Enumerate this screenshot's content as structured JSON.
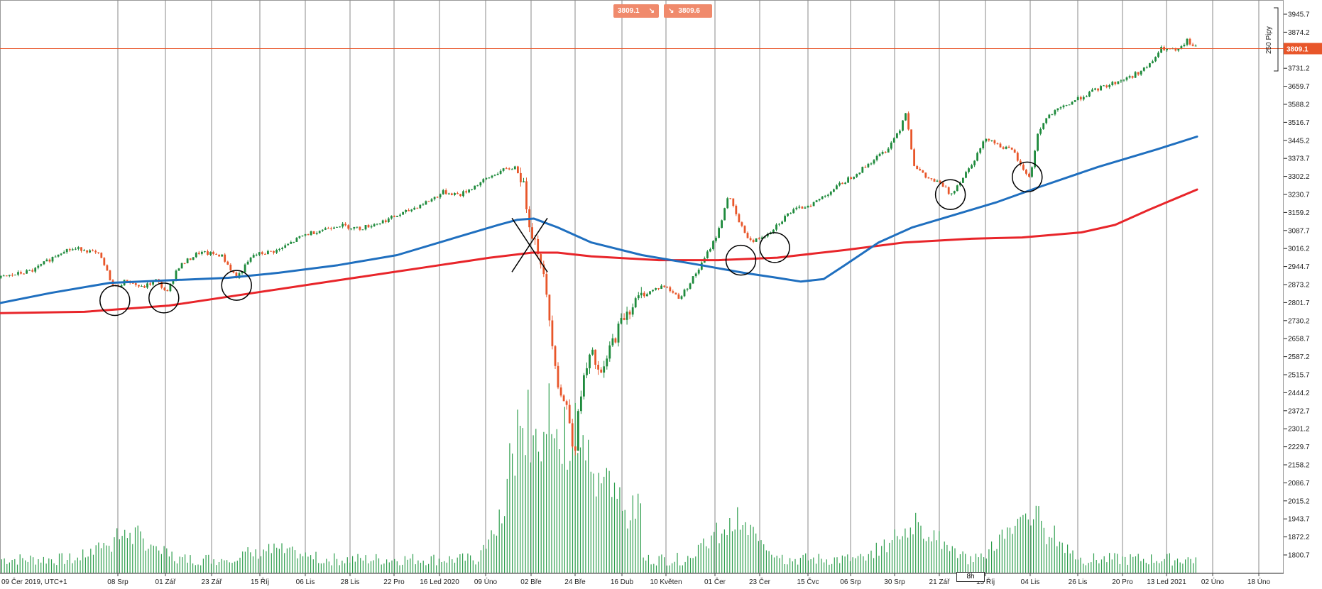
{
  "badges": {
    "sell_price": "3809.1",
    "buy_price": "3809.6",
    "sell_arrow": "↘",
    "buy_arrow": "↘"
  },
  "colors": {
    "up": "#1e8a3c",
    "down": "#e8562a",
    "ma_fast": "#1f6fbf",
    "ma_slow": "#e8252a",
    "current_price_line": "#e8562a",
    "volume": "#2e9e4d"
  },
  "chart_data": {
    "type": "candlestick",
    "title": "",
    "timezone_label": "09 Čer 2019, UTC+1",
    "timeframe": "8h",
    "bracket_label": "250 Pipy",
    "current_price": "3809.1",
    "ylim": [
      1771,
      3982
    ],
    "y_ticks": [
      "3945.7",
      "3874.2",
      "3731.2",
      "3659.7",
      "3588.2",
      "3516.7",
      "3445.2",
      "3373.7",
      "3302.2",
      "3230.7",
      "3159.2",
      "3087.7",
      "3016.2",
      "2944.7",
      "2873.2",
      "2801.7",
      "2730.2",
      "2658.7",
      "2587.2",
      "2515.7",
      "2444.2",
      "2372.7",
      "2301.2",
      "2229.7",
      "2158.2",
      "2086.7",
      "2015.2",
      "1943.7",
      "1872.2",
      "1800.7"
    ],
    "x_labels": [
      "09 Čer 2019, UTC+1",
      "08 Srp",
      "01 Zář",
      "23 Zář",
      "15 Říj",
      "06 Lis",
      "28 Lis",
      "22 Pro",
      "16 Led 2020",
      "09 Úno",
      "02 Bře",
      "24 Bře",
      "16 Dub",
      "10 Květen",
      "01 Čer",
      "23 Čer",
      "15 Čvc",
      "06 Srp",
      "30 Srp",
      "21 Zář",
      "13 Říj",
      "04 Lis",
      "26 Lis",
      "20 Pro",
      "13 Led 2021",
      "02 Úno",
      "18 Úno"
    ],
    "price_path": [
      [
        0,
        2900
      ],
      [
        40,
        2930
      ],
      [
        75,
        3010
      ],
      [
        98,
        3015
      ],
      [
        118,
        2990
      ],
      [
        135,
        2860
      ],
      [
        150,
        2890
      ],
      [
        168,
        2860
      ],
      [
        185,
        2890
      ],
      [
        198,
        2840
      ],
      [
        210,
        2940
      ],
      [
        235,
        3000
      ],
      [
        262,
        2990
      ],
      [
        280,
        2900
      ],
      [
        300,
        2990
      ],
      [
        330,
        3010
      ],
      [
        360,
        3070
      ],
      [
        400,
        3110
      ],
      [
        425,
        3095
      ],
      [
        450,
        3120
      ],
      [
        480,
        3160
      ],
      [
        510,
        3210
      ],
      [
        525,
        3240
      ],
      [
        545,
        3230
      ],
      [
        565,
        3270
      ],
      [
        590,
        3320
      ],
      [
        610,
        3340
      ],
      [
        618,
        3290
      ],
      [
        628,
        3100
      ],
      [
        640,
        2980
      ],
      [
        652,
        2700
      ],
      [
        662,
        2450
      ],
      [
        672,
        2380
      ],
      [
        680,
        2205
      ],
      [
        688,
        2460
      ],
      [
        700,
        2600
      ],
      [
        712,
        2500
      ],
      [
        722,
        2620
      ],
      [
        740,
        2760
      ],
      [
        760,
        2830
      ],
      [
        785,
        2870
      ],
      [
        805,
        2820
      ],
      [
        830,
        2950
      ],
      [
        850,
        3080
      ],
      [
        862,
        3230
      ],
      [
        876,
        3110
      ],
      [
        890,
        3040
      ],
      [
        910,
        3080
      ],
      [
        935,
        3160
      ],
      [
        965,
        3200
      ],
      [
        990,
        3260
      ],
      [
        1020,
        3330
      ],
      [
        1050,
        3410
      ],
      [
        1065,
        3490
      ],
      [
        1072,
        3560
      ],
      [
        1082,
        3350
      ],
      [
        1095,
        3300
      ],
      [
        1115,
        3270
      ],
      [
        1125,
        3230
      ],
      [
        1140,
        3300
      ],
      [
        1155,
        3380
      ],
      [
        1168,
        3460
      ],
      [
        1180,
        3430
      ],
      [
        1200,
        3400
      ],
      [
        1210,
        3330
      ],
      [
        1220,
        3300
      ],
      [
        1228,
        3470
      ],
      [
        1240,
        3540
      ],
      [
        1270,
        3600
      ],
      [
        1300,
        3650
      ],
      [
        1340,
        3700
      ],
      [
        1360,
        3740
      ],
      [
        1375,
        3810
      ],
      [
        1395,
        3800
      ],
      [
        1405,
        3840
      ],
      [
        1417,
        3809
      ]
    ],
    "ma_fast": [
      [
        0,
        2800
      ],
      [
        60,
        2840
      ],
      [
        130,
        2880
      ],
      [
        200,
        2890
      ],
      [
        270,
        2900
      ],
      [
        330,
        2920
      ],
      [
        400,
        2950
      ],
      [
        470,
        2990
      ],
      [
        540,
        3060
      ],
      [
        590,
        3110
      ],
      [
        612,
        3130
      ],
      [
        632,
        3135
      ],
      [
        660,
        3100
      ],
      [
        700,
        3040
      ],
      [
        760,
        2990
      ],
      [
        830,
        2950
      ],
      [
        880,
        2920
      ],
      [
        920,
        2900
      ],
      [
        948,
        2885
      ],
      [
        975,
        2895
      ],
      [
        1000,
        2950
      ],
      [
        1040,
        3040
      ],
      [
        1080,
        3100
      ],
      [
        1130,
        3150
      ],
      [
        1180,
        3200
      ],
      [
        1230,
        3260
      ],
      [
        1300,
        3340
      ],
      [
        1370,
        3410
      ],
      [
        1417,
        3460
      ]
    ],
    "ma_slow": [
      [
        0,
        2760
      ],
      [
        100,
        2765
      ],
      [
        200,
        2790
      ],
      [
        300,
        2840
      ],
      [
        400,
        2890
      ],
      [
        500,
        2940
      ],
      [
        580,
        2980
      ],
      [
        630,
        3000
      ],
      [
        660,
        3000
      ],
      [
        700,
        2985
      ],
      [
        780,
        2970
      ],
      [
        850,
        2970
      ],
      [
        920,
        2980
      ],
      [
        1000,
        3010
      ],
      [
        1070,
        3040
      ],
      [
        1150,
        3055
      ],
      [
        1210,
        3060
      ],
      [
        1280,
        3080
      ],
      [
        1320,
        3110
      ],
      [
        1360,
        3170
      ],
      [
        1417,
        3250
      ]
    ],
    "annotations": [
      {
        "type": "circle",
        "x": 136,
        "y": 2810
      },
      {
        "type": "circle",
        "x": 194,
        "y": 2820
      },
      {
        "type": "circle",
        "x": 280,
        "y": 2870
      },
      {
        "type": "circle",
        "x": 877,
        "y": 2970
      },
      {
        "type": "circle",
        "x": 917,
        "y": 3020
      },
      {
        "type": "circle",
        "x": 1125,
        "y": 3230
      },
      {
        "type": "circle",
        "x": 1216,
        "y": 3300
      },
      {
        "type": "cross",
        "x": 627,
        "y": 3030
      }
    ]
  }
}
